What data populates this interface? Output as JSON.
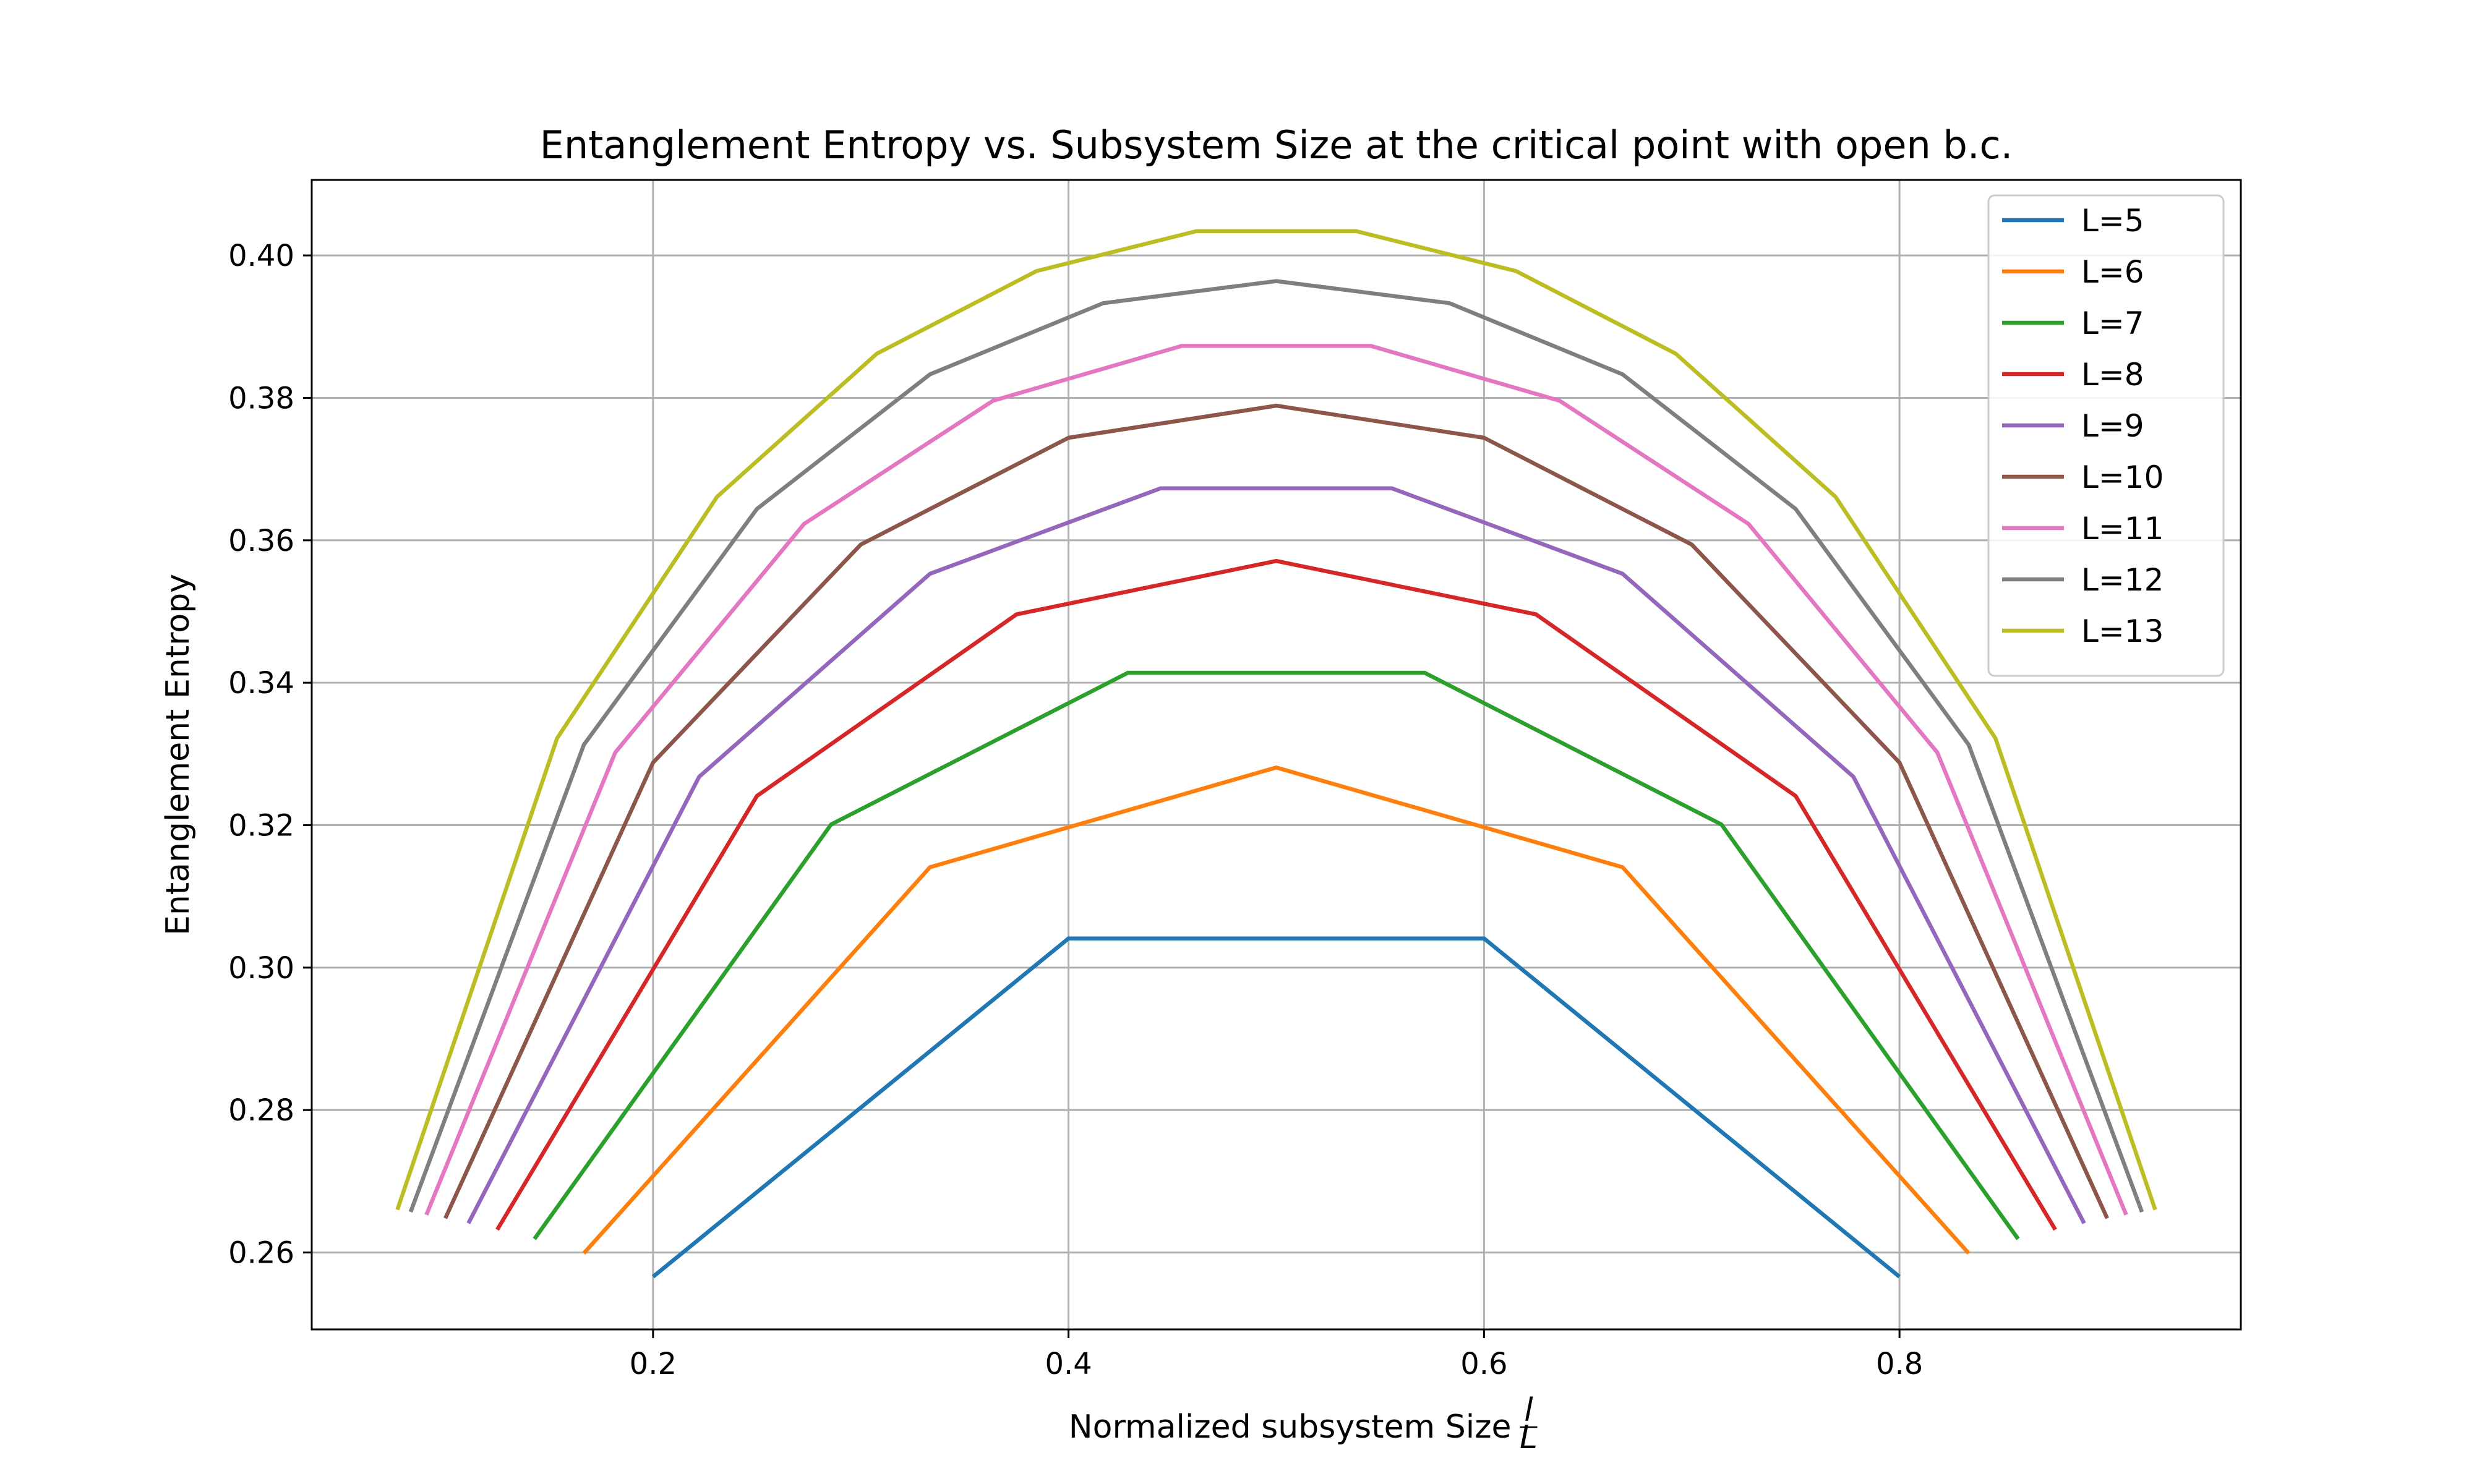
{
  "chart_data": {
    "type": "line",
    "title": "Entanglement Entropy vs. Subsystem Size at the critical point with open b.c.",
    "xlabel": "Normalized subsystem Size",
    "xlabel_fraction": {
      "num": "l",
      "den": "L"
    },
    "ylabel": "Entanglement Entropy",
    "xlim": [
      0.0357,
      0.9643
    ],
    "ylim": [
      0.2492,
      0.4106
    ],
    "x_ticks": [
      0.2,
      0.4,
      0.6,
      0.8
    ],
    "x_tick_labels": [
      "0.2",
      "0.4",
      "0.6",
      "0.8"
    ],
    "y_ticks": [
      0.26,
      0.28,
      0.3,
      0.32,
      0.34,
      0.36,
      0.38,
      0.4
    ],
    "y_tick_labels": [
      "0.26",
      "0.28",
      "0.30",
      "0.32",
      "0.34",
      "0.36",
      "0.38",
      "0.40"
    ],
    "grid": true,
    "legend_position": "top-right",
    "series": [
      {
        "name": "L=5",
        "color": "#1f77b4",
        "x": [
          0.2,
          0.4,
          0.6,
          0.8
        ],
        "y": [
          0.2566,
          0.3041,
          0.3041,
          0.2566
        ]
      },
      {
        "name": "L=6",
        "color": "#ff7f0e",
        "x": [
          0.1667,
          0.3333,
          0.5,
          0.6667,
          0.8333
        ],
        "y": [
          0.2599,
          0.3141,
          0.3281,
          0.3141,
          0.2599
        ]
      },
      {
        "name": "L=7",
        "color": "#2ca02c",
        "x": [
          0.1429,
          0.2857,
          0.4286,
          0.5714,
          0.7143,
          0.8571
        ],
        "y": [
          0.2619,
          0.3201,
          0.3414,
          0.3414,
          0.3201,
          0.2619
        ]
      },
      {
        "name": "L=8",
        "color": "#d62728",
        "x": [
          0.125,
          0.25,
          0.375,
          0.5,
          0.625,
          0.75,
          0.875
        ],
        "y": [
          0.2632,
          0.3241,
          0.3496,
          0.3571,
          0.3496,
          0.3241,
          0.2632
        ]
      },
      {
        "name": "L=9",
        "color": "#9467bd",
        "x": [
          0.1111,
          0.2222,
          0.3333,
          0.4444,
          0.5556,
          0.6667,
          0.7778,
          0.8889
        ],
        "y": [
          0.2641,
          0.3268,
          0.3553,
          0.3673,
          0.3673,
          0.3553,
          0.3268,
          0.2641
        ]
      },
      {
        "name": "L=10",
        "color": "#8c564b",
        "x": [
          0.1,
          0.2,
          0.3,
          0.4,
          0.5,
          0.6,
          0.7,
          0.8,
          0.9
        ],
        "y": [
          0.2648,
          0.3288,
          0.3594,
          0.3744,
          0.3789,
          0.3744,
          0.3594,
          0.3288,
          0.2648
        ]
      },
      {
        "name": "L=11",
        "color": "#e377c2",
        "x": [
          0.0909,
          0.1818,
          0.2727,
          0.3636,
          0.4545,
          0.5455,
          0.6364,
          0.7273,
          0.8182,
          0.9091
        ],
        "y": [
          0.2653,
          0.3302,
          0.3623,
          0.3796,
          0.3873,
          0.3873,
          0.3796,
          0.3623,
          0.3302,
          0.2653
        ]
      },
      {
        "name": "L=12",
        "color": "#7f7f7f",
        "x": [
          0.0833,
          0.1667,
          0.25,
          0.3333,
          0.4167,
          0.5,
          0.5833,
          0.6667,
          0.75,
          0.8333,
          0.9167
        ],
        "y": [
          0.2657,
          0.3313,
          0.3644,
          0.3833,
          0.3933,
          0.3964,
          0.3933,
          0.3833,
          0.3644,
          0.3313,
          0.2657
        ]
      },
      {
        "name": "L=13",
        "color": "#bcbd22",
        "x": [
          0.0769,
          0.1538,
          0.2308,
          0.3077,
          0.3846,
          0.4615,
          0.5385,
          0.6154,
          0.6923,
          0.7692,
          0.8462,
          0.9231
        ],
        "y": [
          0.266,
          0.3322,
          0.3661,
          0.3862,
          0.3978,
          0.4034,
          0.4034,
          0.3978,
          0.3862,
          0.3661,
          0.3322,
          0.266
        ]
      }
    ]
  }
}
